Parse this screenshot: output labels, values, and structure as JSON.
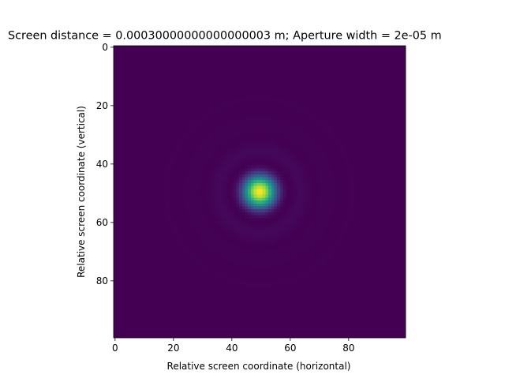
{
  "chart_data": {
    "type": "heatmap",
    "title": "Screen distance = 0.00030000000000000003 m; Aperture width = 2e-05 m",
    "xlabel": "Relative screen coordinate (horizontal)",
    "ylabel": "Relative screen coordinate (vertical)",
    "xlim": [
      -0.5,
      99.5
    ],
    "ylim": [
      99.5,
      -0.5
    ],
    "y_axis_inverted": true,
    "xticks": [
      0,
      20,
      40,
      60,
      80
    ],
    "yticks": [
      0,
      20,
      40,
      60,
      80
    ],
    "grid_size": [
      100,
      100
    ],
    "colormap": "viridis",
    "pattern": "Airy diffraction pattern (circular aperture)",
    "center": [
      49.5,
      49.5
    ],
    "central_disk_radius": 10.5,
    "value_range": [
      0,
      1
    ],
    "grid": false,
    "legend": "none"
  }
}
